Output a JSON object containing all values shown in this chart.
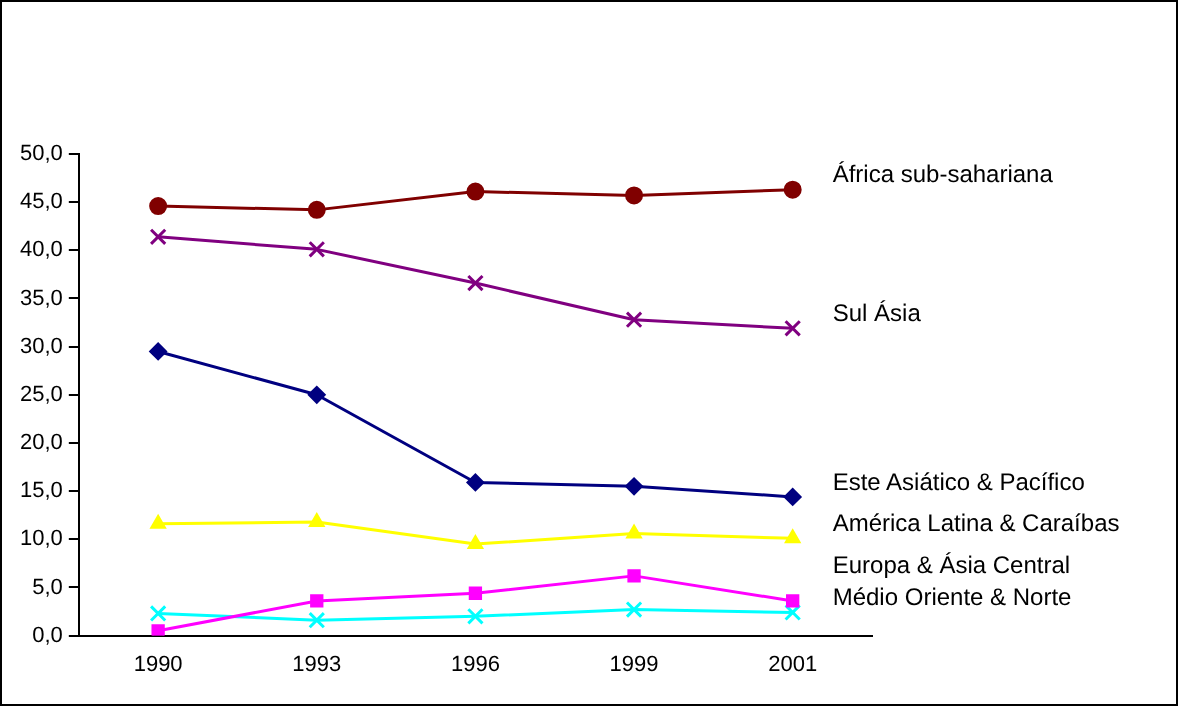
{
  "chart_data": {
    "type": "line",
    "categories": [
      "1990",
      "1993",
      "1996",
      "1999",
      "2001"
    ],
    "ylim": [
      0,
      50
    ],
    "yticks": [
      {
        "value": 0,
        "label": "0,0"
      },
      {
        "value": 5,
        "label": "5,0"
      },
      {
        "value": 10,
        "label": "10,0"
      },
      {
        "value": 15,
        "label": "15,0"
      },
      {
        "value": 20,
        "label": "20,0"
      },
      {
        "value": 25,
        "label": "25,0"
      },
      {
        "value": 30,
        "label": "30,0"
      },
      {
        "value": 35,
        "label": "35,0"
      },
      {
        "value": 40,
        "label": "40,0"
      },
      {
        "value": 45,
        "label": "45,0"
      },
      {
        "value": 50,
        "label": "50,0"
      }
    ],
    "grid": false,
    "legend": false,
    "series": [
      {
        "name": "África sub-sahariana",
        "color": "#800000",
        "marker": "circle",
        "values": [
          44.6,
          44.2,
          46.1,
          45.7,
          46.3
        ]
      },
      {
        "name": "Sul Ásia",
        "color": "#800080",
        "marker": "cross",
        "values": [
          41.4,
          40.1,
          36.6,
          32.8,
          31.9
        ]
      },
      {
        "name": "Este Asiático & Pacífico",
        "color": "#000080",
        "marker": "diamond",
        "values": [
          29.5,
          25.0,
          15.9,
          15.5,
          14.4
        ]
      },
      {
        "name": "América Latina & Caraíbas",
        "color": "#ffff00",
        "marker": "triangle",
        "values": [
          11.6,
          11.8,
          9.5,
          10.6,
          10.1
        ]
      },
      {
        "name": "Europa & Ásia Central",
        "color": "#ff00ff",
        "marker": "square",
        "values": [
          0.5,
          3.6,
          4.4,
          6.2,
          3.6
        ]
      },
      {
        "name": "Médio Oriente & Norte",
        "color": "#00ffff",
        "marker": "cross",
        "values": [
          2.3,
          1.6,
          2.0,
          2.7,
          2.4
        ]
      }
    ]
  }
}
